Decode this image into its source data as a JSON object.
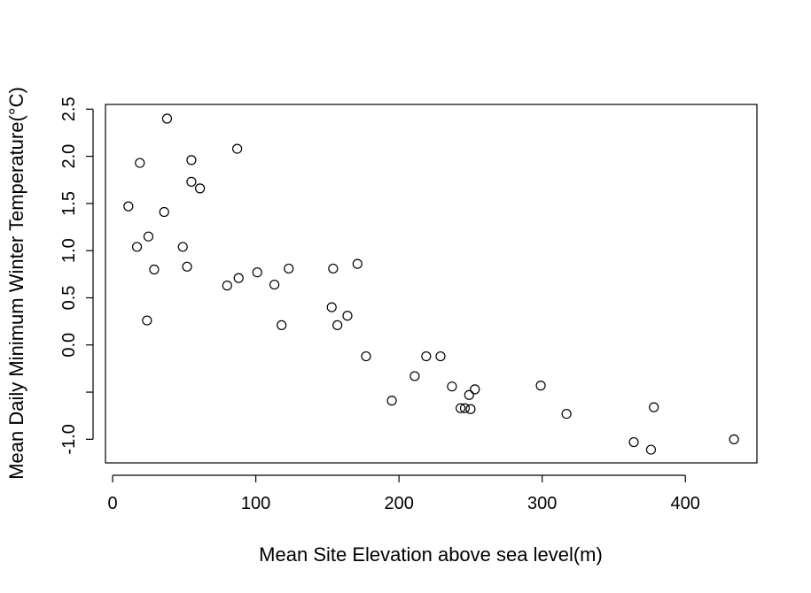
{
  "chart_data": {
    "type": "scatter",
    "title": "",
    "xlabel": "Mean Site Elevation above sea level(m)",
    "ylabel": "Mean Daily Minimum Winter Temperature(°C)",
    "xlim": [
      -5,
      450
    ],
    "ylim": [
      -1.25,
      2.55
    ],
    "x_ticks": [
      0,
      100,
      200,
      300,
      400
    ],
    "x_tick_labels": [
      "0",
      "100",
      "200",
      "300",
      "400"
    ],
    "y_ticks": [
      -1.0,
      -0.5,
      0.0,
      0.5,
      1.0,
      1.5,
      2.0,
      2.5
    ],
    "y_tick_labels": [
      "-1.0",
      "",
      "0.0",
      "0.5",
      "1.0",
      "1.5",
      "2.0",
      "2.5"
    ],
    "grid": false,
    "legend": "none",
    "point_color": "#000000",
    "points": [
      {
        "x": 11,
        "y": 1.47
      },
      {
        "x": 17,
        "y": 1.04
      },
      {
        "x": 19,
        "y": 1.93
      },
      {
        "x": 24,
        "y": 0.26
      },
      {
        "x": 25,
        "y": 1.15
      },
      {
        "x": 29,
        "y": 0.8
      },
      {
        "x": 36,
        "y": 1.41
      },
      {
        "x": 38,
        "y": 2.4
      },
      {
        "x": 49,
        "y": 1.04
      },
      {
        "x": 52,
        "y": 0.83
      },
      {
        "x": 55,
        "y": 1.73
      },
      {
        "x": 55,
        "y": 1.96
      },
      {
        "x": 61,
        "y": 1.66
      },
      {
        "x": 80,
        "y": 0.63
      },
      {
        "x": 87,
        "y": 2.08
      },
      {
        "x": 88,
        "y": 0.71
      },
      {
        "x": 101,
        "y": 0.77
      },
      {
        "x": 113,
        "y": 0.64
      },
      {
        "x": 118,
        "y": 0.21
      },
      {
        "x": 123,
        "y": 0.81
      },
      {
        "x": 153,
        "y": 0.4
      },
      {
        "x": 154,
        "y": 0.81
      },
      {
        "x": 157,
        "y": 0.21
      },
      {
        "x": 164,
        "y": 0.31
      },
      {
        "x": 171,
        "y": 0.86
      },
      {
        "x": 177,
        "y": -0.12
      },
      {
        "x": 195,
        "y": -0.59
      },
      {
        "x": 211,
        "y": -0.33
      },
      {
        "x": 219,
        "y": -0.12
      },
      {
        "x": 229,
        "y": -0.12
      },
      {
        "x": 237,
        "y": -0.44
      },
      {
        "x": 243,
        "y": -0.67
      },
      {
        "x": 246,
        "y": -0.67
      },
      {
        "x": 249,
        "y": -0.53
      },
      {
        "x": 250,
        "y": -0.68
      },
      {
        "x": 253,
        "y": -0.47
      },
      {
        "x": 299,
        "y": -0.43
      },
      {
        "x": 317,
        "y": -0.73
      },
      {
        "x": 364,
        "y": -1.03
      },
      {
        "x": 376,
        "y": -1.11
      },
      {
        "x": 378,
        "y": -0.66
      },
      {
        "x": 434,
        "y": -1.0
      }
    ]
  }
}
